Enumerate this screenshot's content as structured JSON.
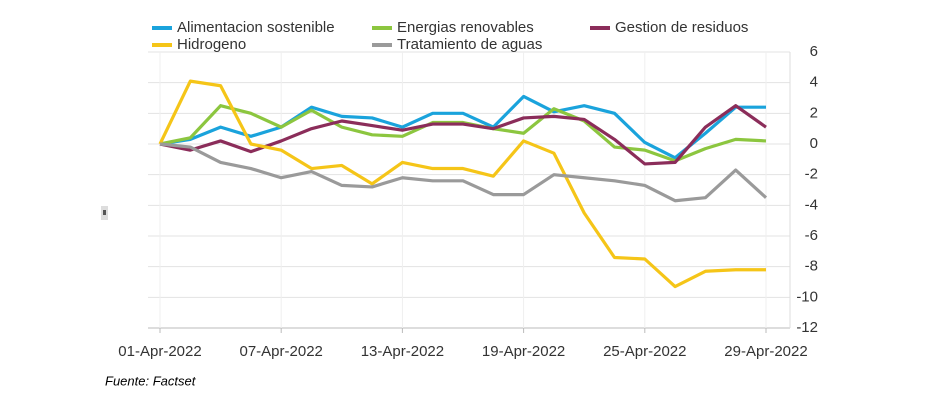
{
  "chart_data": {
    "type": "line",
    "categories": [
      "01-Apr-2022",
      null,
      null,
      null,
      "07-Apr-2022",
      null,
      null,
      null,
      "13-Apr-2022",
      null,
      null,
      null,
      "19-Apr-2022",
      null,
      null,
      null,
      "25-Apr-2022",
      null,
      null,
      null,
      "29-Apr-2022"
    ],
    "series": [
      {
        "name": "Alimentacion sostenible",
        "color": "#1aa3dc",
        "values": [
          0,
          0.3,
          1.1,
          0.5,
          1.1,
          2.4,
          1.8,
          1.7,
          1.1,
          2.0,
          2.0,
          1.1,
          3.1,
          2.1,
          2.5,
          2.0,
          0.1,
          -0.9,
          0.7,
          2.4,
          2.4
        ]
      },
      {
        "name": "Energias renovables",
        "color": "#8cc63f",
        "values": [
          0,
          0.4,
          2.5,
          2.0,
          1.1,
          2.2,
          1.1,
          0.6,
          0.5,
          1.4,
          1.4,
          1.0,
          0.7,
          2.3,
          1.5,
          -0.2,
          -0.4,
          -1.1,
          -0.3,
          0.3,
          0.2
        ]
      },
      {
        "name": "Gestion de residuos",
        "color": "#8b2d5a",
        "values": [
          0,
          -0.4,
          0.2,
          -0.5,
          0.2,
          1.0,
          1.5,
          1.2,
          0.9,
          1.3,
          1.3,
          1.0,
          1.7,
          1.8,
          1.6,
          0.3,
          -1.3,
          -1.2,
          1.1,
          2.5,
          1.1
        ]
      },
      {
        "name": "Hidrogeno",
        "color": "#f5c518",
        "values": [
          0,
          4.1,
          3.8,
          0,
          -0.4,
          -1.6,
          -1.4,
          -2.6,
          -1.2,
          -1.6,
          -1.6,
          -2.1,
          0.2,
          -0.6,
          -4.5,
          -7.4,
          -7.5,
          -9.3,
          -8.3,
          -8.2,
          -8.2
        ]
      },
      {
        "name": "Tratamiento de aguas",
        "color": "#9a9a9a",
        "values": [
          0,
          -0.2,
          -1.2,
          -1.6,
          -2.2,
          -1.8,
          -2.7,
          -2.8,
          -2.2,
          -2.4,
          -2.4,
          -3.3,
          -3.3,
          -2.0,
          -2.2,
          -2.4,
          -2.7,
          -3.7,
          -3.5,
          -1.7,
          -3.5
        ]
      }
    ],
    "ylim": [
      -12,
      6
    ],
    "yticks": [
      6,
      4,
      2,
      0,
      -2,
      -4,
      -6,
      -8,
      -10,
      -12
    ],
    "grid": true,
    "source": "Fuente: Factset"
  }
}
